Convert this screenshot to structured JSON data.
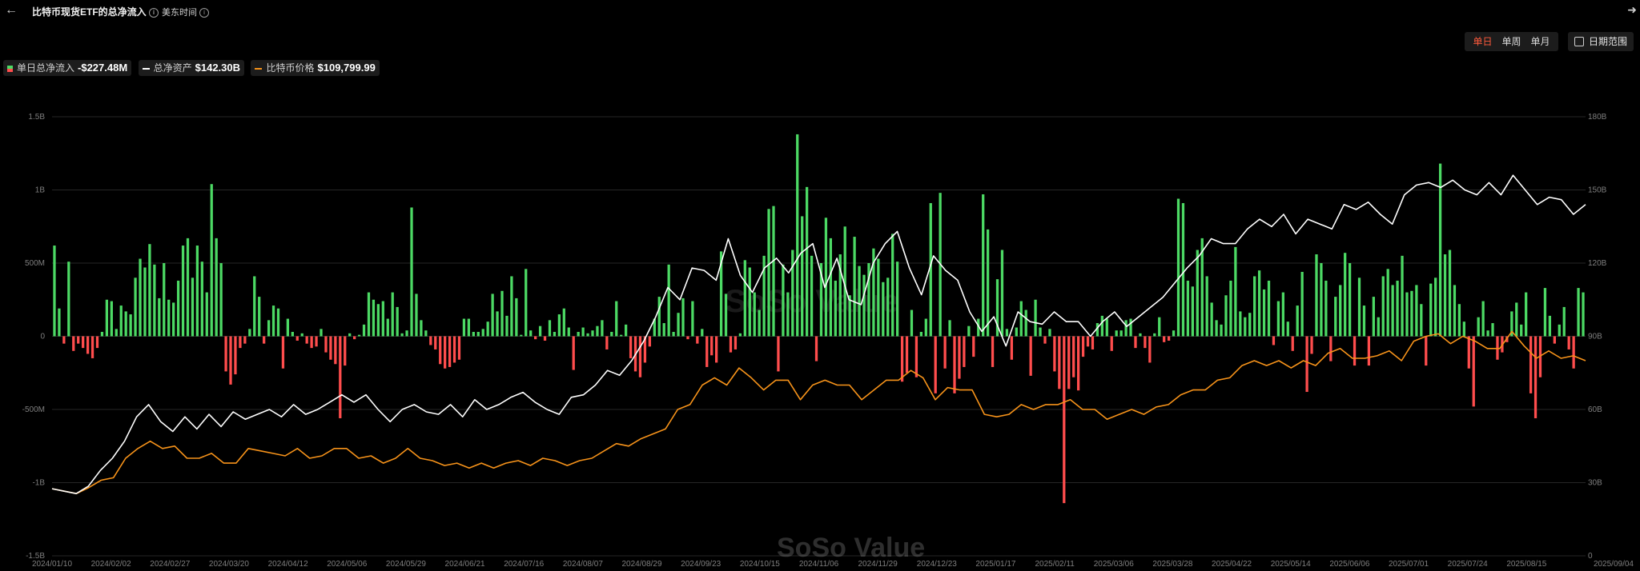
{
  "header": {
    "title": "比特币现货ETF的总净流入",
    "title_info_icon": "info-icon",
    "timezone": "美东时间",
    "timezone_info_icon": "info-icon",
    "back_icon": "arrow-left-icon",
    "share_icon": "share-icon"
  },
  "legend": {
    "flow": {
      "label": "单日总净流入",
      "value": "-$227.48M"
    },
    "assets": {
      "label": "总净资产",
      "value": "$142.30B"
    },
    "price": {
      "label": "比特币价格",
      "value": "$109,799.99"
    }
  },
  "controls": {
    "periods": [
      "单日",
      "单周",
      "单月"
    ],
    "active_period": "单日",
    "date_range_label": "日期范围",
    "date_range_icon": "calendar-icon"
  },
  "watermark": "SoSo Value",
  "colors": {
    "inflow": "#4cd964",
    "outflow": "#ff4d4d",
    "net_assets": "#ffffff",
    "btc_price": "#f7931a",
    "active_tab": "#ff5a3c"
  },
  "chart_data": {
    "type": "bar",
    "x_tick_labels": [
      "2024/01/10",
      "2024/02/02",
      "2024/02/27",
      "2024/03/20",
      "2024/04/12",
      "2024/05/06",
      "2024/05/29",
      "2024/06/21",
      "2024/07/16",
      "2024/08/07",
      "2024/08/29",
      "2024/09/23",
      "2024/10/15",
      "2024/11/06",
      "2024/11/29",
      "2024/12/23",
      "2025/01/17",
      "2025/02/11",
      "2025/03/06",
      "2025/03/28",
      "2025/04/22",
      "2025/05/14",
      "2025/06/06",
      "2025/07/01",
      "2025/07/24",
      "2025/08/15",
      "2025/09/04"
    ],
    "y_left": {
      "ticks": [
        "1.5B",
        "1B",
        "500M",
        "0",
        "-500M",
        "-1B",
        "-1.5B"
      ],
      "range": [
        -1.5,
        1.5
      ],
      "unit": "B"
    },
    "y_right": {
      "ticks": [
        "180B",
        "150B",
        "120B",
        "90B",
        "60B",
        "30B",
        "0"
      ],
      "range": [
        0,
        180
      ],
      "unit": "B"
    },
    "grid": true,
    "legend_position": "top-left",
    "series": [
      {
        "name": "单日总净流入",
        "type": "bar",
        "axis": "left",
        "values": [
          0.62,
          0.19,
          -0.05,
          0.51,
          -0.1,
          -0.05,
          -0.08,
          -0.12,
          -0.15,
          -0.08,
          0.03,
          0.25,
          0.24,
          0.05,
          0.21,
          0.17,
          0.15,
          0.4,
          0.53,
          0.47,
          0.63,
          0.49,
          0.26,
          0.5,
          0.25,
          0.23,
          0.38,
          0.62,
          0.67,
          0.4,
          0.62,
          0.51,
          0.3,
          1.04,
          0.67,
          0.5,
          -0.24,
          -0.33,
          -0.26,
          -0.08,
          -0.05,
          0.05,
          0.41,
          0.27,
          -0.05,
          0.11,
          0.21,
          0.19,
          -0.22,
          0.12,
          0.03,
          -0.03,
          0.02,
          -0.05,
          -0.08,
          -0.07,
          0.05,
          -0.11,
          -0.16,
          -0.19,
          -0.56,
          -0.2,
          0.02,
          -0.02,
          0.01,
          0.08,
          0.3,
          0.25,
          0.22,
          0.24,
          0.12,
          0.3,
          0.2,
          0.02,
          0.04,
          0.88,
          0.29,
          0.11,
          0.04,
          -0.06,
          -0.09,
          -0.19,
          -0.22,
          -0.21,
          -0.18,
          -0.16,
          0.12,
          0.12,
          0.03,
          0.03,
          0.05,
          0.1,
          0.29,
          0.17,
          0.31,
          0.14,
          0.41,
          0.26,
          0.01,
          0.46,
          0.04,
          -0.02,
          0.07,
          -0.03,
          0.11,
          0.03,
          0.15,
          0.19,
          0.06,
          -0.23,
          0.03,
          0.06,
          0.02,
          0.04,
          0.07,
          0.11,
          -0.09,
          0.03,
          0.24,
          0.01,
          0.08,
          -0.15,
          -0.24,
          -0.28,
          -0.18,
          -0.07,
          0.12,
          0.27,
          0.09,
          0.49,
          0.03,
          0.16,
          0.26,
          -0.02,
          0.24,
          -0.05,
          0.05,
          -0.21,
          -0.13,
          -0.18,
          0.58,
          0.29,
          -0.11,
          -0.09,
          0.02,
          0.52,
          0.47,
          0.3,
          0.18,
          0.55,
          0.87,
          0.89,
          -0.24,
          0.49,
          0.3,
          0.59,
          1.38,
          0.82,
          1.02,
          0.55,
          -0.17,
          0.5,
          0.81,
          0.67,
          0.38,
          0.56,
          0.75,
          0.28,
          0.68,
          0.48,
          0.42,
          0.5,
          0.6,
          0.53,
          0.37,
          0.4,
          0.7,
          0.51,
          -0.31,
          -0.25,
          0.18,
          -0.28,
          0.03,
          0.12,
          0.91,
          -0.39,
          0.98,
          -0.22,
          0.11,
          -0.39,
          -0.29,
          -0.21,
          0.07,
          -0.14,
          0.12,
          0.97,
          0.73,
          -0.21,
          0.39,
          0.59,
          0.05,
          -0.16,
          0.06,
          0.24,
          0.18,
          -0.27,
          0.25,
          0.06,
          -0.05,
          0.05,
          -0.24,
          -0.36,
          -1.14,
          -0.36,
          -0.28,
          -0.37,
          -0.14,
          -0.07,
          -0.09,
          0.09,
          0.14,
          0.12,
          -0.1,
          0.04,
          0.04,
          0.11,
          0.12,
          -0.08,
          0.02,
          -0.08,
          -0.18,
          0.02,
          0.13,
          -0.04,
          -0.03,
          0.04,
          0.94,
          0.91,
          0.38,
          0.34,
          0.59,
          0.67,
          0.41,
          0.23,
          0.11,
          0.08,
          0.28,
          0.38,
          0.61,
          0.17,
          0.13,
          0.16,
          0.41,
          0.45,
          0.32,
          0.38,
          -0.06,
          0.24,
          0.3,
          0.1,
          -0.1,
          0.21,
          0.44,
          -0.38,
          -0.12,
          0.56,
          0.5,
          0.38,
          -0.17,
          0.27,
          0.35,
          0.57,
          0.5,
          -0.2,
          0.4,
          0.21,
          -0.2,
          0.27,
          0.13,
          0.41,
          0.46,
          0.35,
          0.38,
          0.55,
          0.3,
          0.31,
          0.35,
          0.22,
          -0.2,
          0.36,
          0.4,
          1.18,
          0.56,
          0.59,
          0.35,
          0.22,
          0.1,
          -0.22,
          -0.48,
          0.13,
          0.24,
          0.04,
          0.09,
          -0.16,
          -0.11,
          -0.04,
          0.17,
          0.23,
          0.08,
          0.3,
          -0.39,
          -0.56,
          -0.28,
          0.33,
          0.14,
          -0.05,
          0.08,
          0.2,
          -0.09,
          -0.22,
          0.33,
          0.3
        ]
      },
      {
        "name": "总净资产",
        "type": "line",
        "axis": "right",
        "values": [
          27.5,
          26.5,
          25.5,
          28.5,
          35,
          40,
          47,
          57,
          62,
          55,
          51,
          57,
          52,
          58,
          53,
          59,
          56,
          58,
          60,
          57,
          62,
          58,
          60,
          63,
          66,
          63,
          66,
          60,
          55,
          60,
          62,
          59,
          58,
          62,
          57,
          64,
          60,
          62,
          65,
          67,
          63,
          60,
          58,
          65,
          66,
          70,
          76,
          74,
          80,
          88,
          98,
          110,
          105,
          118,
          117,
          113,
          130,
          115,
          108,
          118,
          122,
          116,
          124,
          128,
          110,
          122,
          105,
          103,
          120,
          128,
          133,
          118,
          107,
          123,
          117,
          113,
          100,
          92,
          98,
          86,
          100,
          96,
          95,
          100,
          96,
          96,
          90,
          96,
          100,
          94,
          98,
          102,
          106,
          112,
          118,
          123,
          130,
          128,
          128,
          134,
          138,
          135,
          140,
          132,
          138,
          136,
          134,
          144,
          142,
          145,
          140,
          136,
          148,
          152,
          153,
          151,
          154,
          150,
          148,
          153,
          148,
          156,
          150,
          144,
          147,
          146,
          140,
          144
        ],
        "sample_note": "decimated trace"
      },
      {
        "name": "比特币价格",
        "type": "line",
        "axis": "right",
        "values": [
          27.5,
          26.5,
          25.5,
          28,
          31,
          32,
          40,
          44,
          47,
          44,
          45,
          40,
          40,
          42,
          38,
          38,
          44,
          43,
          42,
          41,
          44,
          40,
          41,
          44,
          44,
          40,
          41,
          38,
          40,
          44,
          40,
          39,
          37,
          38,
          36,
          38,
          36,
          38,
          39,
          37,
          40,
          39,
          37,
          39,
          40,
          43,
          46,
          45,
          48,
          50,
          52,
          60,
          62,
          70,
          73,
          70,
          77,
          73,
          68,
          72,
          72,
          64,
          70,
          72,
          70,
          70,
          64,
          68,
          72,
          72,
          76,
          73,
          64,
          69,
          68,
          68,
          58,
          57,
          58,
          62,
          60,
          62,
          62,
          64,
          60,
          60,
          56,
          58,
          60,
          58,
          61,
          62,
          66,
          68,
          68,
          72,
          73,
          78,
          80,
          78,
          80,
          77,
          80,
          78,
          83,
          85,
          81,
          81,
          82,
          84,
          80,
          88,
          90,
          91,
          87,
          90,
          88,
          85,
          85,
          92,
          86,
          81,
          84,
          81,
          82,
          80
        ],
        "sample_note": "decimated trace"
      }
    ]
  }
}
